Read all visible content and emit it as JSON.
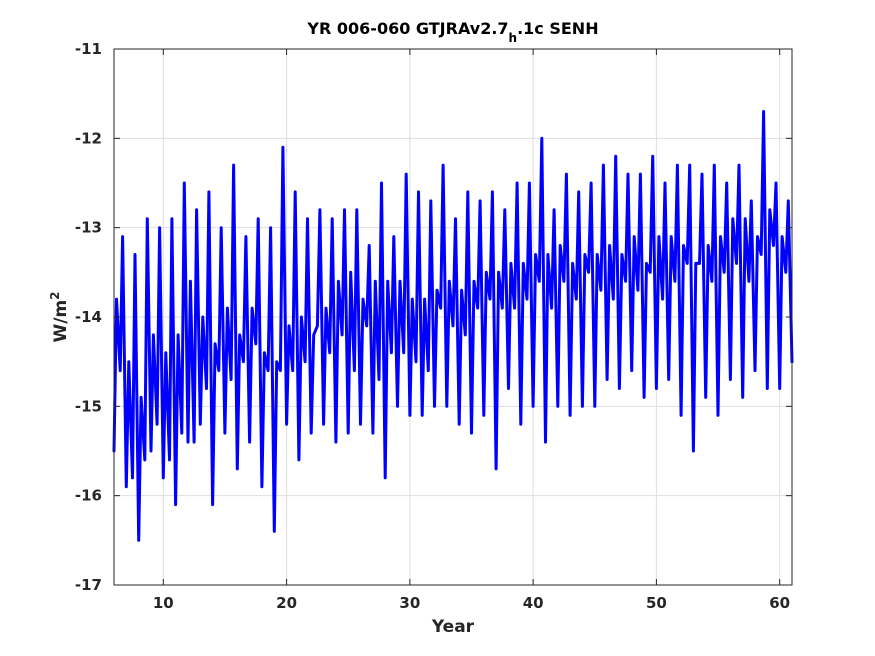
{
  "chart_data": {
    "type": "line",
    "title": {
      "main": "YR 006-060 GTJRAv2.7",
      "subscript": "h",
      "suffix": ".1c SENH"
    },
    "xlabel": "Year",
    "ylabel": {
      "main": "W/m",
      "superscript": "2"
    },
    "xlim": [
      6,
      61
    ],
    "ylim": [
      -17,
      -11
    ],
    "xticks": [
      10,
      20,
      30,
      40,
      50,
      60
    ],
    "yticks": [
      -11,
      -12,
      -13,
      -14,
      -15,
      -16,
      -17
    ],
    "grid": true,
    "series": [
      {
        "color": "#0000ff",
        "x": [
          6.0,
          6.2,
          6.5,
          6.7,
          7.0,
          7.2,
          7.5,
          7.7,
          8.0,
          8.2,
          8.5,
          8.7,
          9.0,
          9.2,
          9.5,
          9.7,
          10.0,
          10.2,
          10.5,
          10.7,
          11.0,
          11.2,
          11.5,
          11.7,
          12.0,
          12.2,
          12.5,
          12.7,
          13.0,
          13.2,
          13.5,
          13.7,
          14.0,
          14.2,
          14.5,
          14.7,
          15.0,
          15.2,
          15.5,
          15.7,
          16.0,
          16.2,
          16.5,
          16.7,
          17.0,
          17.2,
          17.5,
          17.7,
          18.0,
          18.2,
          18.5,
          18.7,
          19.0,
          19.2,
          19.5,
          19.7,
          20.0,
          20.2,
          20.5,
          20.7,
          21.0,
          21.2,
          21.5,
          21.7,
          22.0,
          22.2,
          22.5,
          22.7,
          23.0,
          23.2,
          23.5,
          23.7,
          24.0,
          24.2,
          24.5,
          24.7,
          25.0,
          25.2,
          25.5,
          25.7,
          26.0,
          26.2,
          26.5,
          26.7,
          27.0,
          27.2,
          27.5,
          27.7,
          28.0,
          28.2,
          28.5,
          28.7,
          29.0,
          29.2,
          29.5,
          29.7,
          30.0,
          30.2,
          30.5,
          30.7,
          31.0,
          31.2,
          31.5,
          31.7,
          32.0,
          32.2,
          32.5,
          32.7,
          33.0,
          33.2,
          33.5,
          33.7,
          34.0,
          34.2,
          34.5,
          34.7,
          35.0,
          35.2,
          35.5,
          35.7,
          36.0,
          36.2,
          36.5,
          36.7,
          37.0,
          37.2,
          37.5,
          37.7,
          38.0,
          38.2,
          38.5,
          38.7,
          39.0,
          39.2,
          39.5,
          39.7,
          40.0,
          40.2,
          40.5,
          40.7,
          41.0,
          41.2,
          41.5,
          41.7,
          42.0,
          42.2,
          42.5,
          42.7,
          43.0,
          43.2,
          43.5,
          43.7,
          44.0,
          44.2,
          44.5,
          44.7,
          45.0,
          45.2,
          45.5,
          45.7,
          46.0,
          46.2,
          46.5,
          46.7,
          47.0,
          47.2,
          47.5,
          47.7,
          48.0,
          48.2,
          48.5,
          48.7,
          49.0,
          49.2,
          49.5,
          49.7,
          50.0,
          50.2,
          50.5,
          50.7,
          51.0,
          51.2,
          51.5,
          51.7,
          52.0,
          52.2,
          52.5,
          52.7,
          53.0,
          53.2,
          53.5,
          53.7,
          54.0,
          54.2,
          54.5,
          54.7,
          55.0,
          55.2,
          55.5,
          55.7,
          56.0,
          56.2,
          56.5,
          56.7,
          57.0,
          57.2,
          57.5,
          57.7,
          58.0,
          58.2,
          58.5,
          58.7,
          59.0,
          59.2,
          59.5,
          59.7,
          60.0,
          60.2,
          60.5,
          60.7,
          61.0
        ],
        "y": [
          -15.5,
          -13.8,
          -14.6,
          -13.1,
          -15.9,
          -14.5,
          -15.8,
          -13.3,
          -16.5,
          -14.9,
          -15.6,
          -12.9,
          -15.5,
          -14.2,
          -15.2,
          -13.0,
          -15.8,
          -14.4,
          -15.6,
          -12.9,
          -16.1,
          -14.2,
          -15.3,
          -12.5,
          -15.4,
          -13.6,
          -15.4,
          -12.8,
          -15.2,
          -14.0,
          -14.8,
          -12.6,
          -16.1,
          -14.3,
          -14.6,
          -13.0,
          -15.3,
          -13.9,
          -14.7,
          -12.3,
          -15.7,
          -14.2,
          -14.5,
          -13.1,
          -15.4,
          -13.9,
          -14.3,
          -12.9,
          -15.9,
          -14.4,
          -14.6,
          -13.0,
          -16.4,
          -14.5,
          -14.6,
          -12.1,
          -15.2,
          -14.1,
          -14.6,
          -12.6,
          -15.6,
          -14.0,
          -14.5,
          -12.9,
          -15.3,
          -14.2,
          -14.1,
          -12.8,
          -15.2,
          -13.9,
          -14.4,
          -12.9,
          -15.4,
          -13.6,
          -14.2,
          -12.8,
          -15.3,
          -13.5,
          -14.6,
          -12.8,
          -15.2,
          -13.8,
          -14.1,
          -13.2,
          -15.3,
          -13.6,
          -14.7,
          -12.5,
          -15.8,
          -13.6,
          -14.4,
          -13.1,
          -15.0,
          -13.6,
          -14.4,
          -12.4,
          -15.1,
          -13.8,
          -14.5,
          -12.6,
          -15.1,
          -13.8,
          -14.6,
          -12.7,
          -15.0,
          -13.7,
          -13.9,
          -12.3,
          -15.0,
          -13.6,
          -14.1,
          -12.9,
          -15.2,
          -13.7,
          -14.2,
          -12.6,
          -15.3,
          -13.6,
          -13.9,
          -12.7,
          -15.1,
          -13.5,
          -13.8,
          -12.6,
          -15.7,
          -13.5,
          -13.9,
          -12.8,
          -14.8,
          -13.4,
          -13.9,
          -12.5,
          -15.2,
          -13.4,
          -13.8,
          -12.5,
          -15.0,
          -13.3,
          -13.6,
          -12.0,
          -15.4,
          -13.3,
          -13.9,
          -12.8,
          -15.0,
          -13.2,
          -13.6,
          -12.4,
          -15.1,
          -13.4,
          -13.8,
          -12.6,
          -15.0,
          -13.3,
          -13.5,
          -12.5,
          -15.0,
          -13.3,
          -13.7,
          -12.3,
          -14.7,
          -13.2,
          -13.8,
          -12.2,
          -14.8,
          -13.3,
          -13.6,
          -12.4,
          -14.6,
          -13.1,
          -13.7,
          -12.4,
          -14.9,
          -13.4,
          -13.5,
          -12.2,
          -14.8,
          -13.1,
          -13.8,
          -12.5,
          -14.7,
          -13.1,
          -13.6,
          -12.3,
          -15.1,
          -13.2,
          -13.4,
          -12.3,
          -15.5,
          -13.4,
          -13.4,
          -12.4,
          -14.9,
          -13.2,
          -13.6,
          -12.3,
          -15.1,
          -13.1,
          -13.5,
          -12.5,
          -14.7,
          -12.9,
          -13.4,
          -12.3,
          -14.9,
          -12.9,
          -13.6,
          -12.7,
          -14.6,
          -13.1,
          -13.3,
          -11.7,
          -14.8,
          -12.8,
          -13.2,
          -12.5,
          -14.8,
          -13.1,
          -13.5,
          -12.7,
          -14.5
        ]
      }
    ]
  }
}
